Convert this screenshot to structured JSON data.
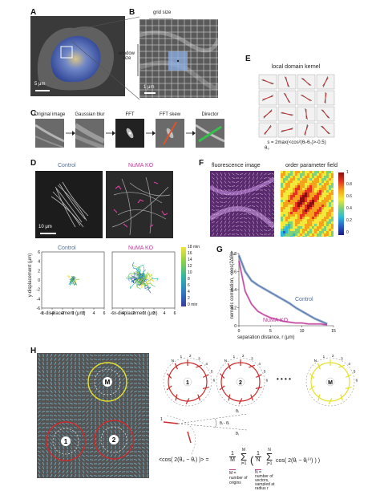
{
  "panels": {
    "A": {
      "label": "A",
      "scale": "5 μm"
    },
    "B": {
      "label": "B",
      "scale": "1 μm",
      "grid_size": "grid size",
      "window_size_line1": "window",
      "window_size_line2": "size"
    },
    "C": {
      "label": "C",
      "steps": [
        "Original image",
        "Gaussian blur",
        "FFT",
        "FFT skew",
        "Director"
      ],
      "theta": "θ"
    },
    "D": {
      "label": "D",
      "control": "Control",
      "numa": "NuMA KO",
      "scale": "10 μm",
      "xlabel": "x-displacement (μm)",
      "ylabel": "y-displacement (μm)",
      "xticks": [
        "-6",
        "-4",
        "-2",
        "0",
        "2",
        "4",
        "6"
      ],
      "yticks": [
        "6",
        "4",
        "2",
        "0",
        "-2",
        "-4",
        "-6"
      ],
      "colorbar_ticks": [
        "18 min",
        "16",
        "14",
        "12",
        "10",
        "8",
        "6",
        "4",
        "2",
        "0 min"
      ]
    },
    "E": {
      "label": "E",
      "title": "local domain kernel",
      "formula": "s = 2max(<cos²(θᵢ-θ₀)>-0.5)",
      "sub": "θ₀"
    },
    "F": {
      "label": "F",
      "left_title": "fluorescence image",
      "right_title": "order parameter field",
      "colorbar_ticks": [
        "1",
        "0.8",
        "0.6",
        "0.4",
        "0.2",
        "0"
      ]
    },
    "G": {
      "label": "G",
      "ylabel_line1": "nematic correlation, <cos(2Δθ)>",
      "xlabel": "separation distance, r (μm)",
      "control": "Control",
      "numa": "NuMA KO",
      "xticks": [
        "0",
        "5",
        "10",
        "15"
      ],
      "yticks": [
        "0.8",
        "0.6",
        "0.4",
        "0.2",
        "0"
      ]
    },
    "H": {
      "label": "H",
      "circle_labels": [
        "M",
        "1",
        "2"
      ],
      "dots": "• • • •",
      "ring_numbers": [
        "N",
        "1",
        "2",
        "3",
        "4",
        "5",
        "6"
      ],
      "angle_labels": [
        "θⱼ",
        "θᵢ",
        "θⱼ - θᵢ"
      ],
      "lhs": "<cos( 2(θ₀ − θᵣ) )> =",
      "frac1_num": "1",
      "frac1_den": "M",
      "frac2_num": "1",
      "frac2_den": "N",
      "sum1_top": "M",
      "sum1_bot": "i=1",
      "sum2_top": "N",
      "sum2_bot": "j=1",
      "inner": "cos( 2(θᵢ − θⱼ⁽ⁱ⁾) ) )",
      "note_m": "M =",
      "note_m2": "number of",
      "note_m3": "origins",
      "note_n": "N =",
      "note_n2": "number of",
      "note_n3": "vectors,",
      "note_n4": "sampled at",
      "note_n5": "radius r"
    }
  },
  "chart_data": [
    {
      "type": "line",
      "title": "",
      "xlabel": "separation distance, r (μm)",
      "ylabel": "nematic correlation, <cos(2Δθ)>",
      "xlim": [
        0,
        15
      ],
      "ylim": [
        0,
        0.8
      ],
      "series": [
        {
          "name": "Control",
          "x": [
            0,
            1,
            2,
            3,
            4,
            5,
            6,
            7,
            8,
            9,
            10,
            11,
            12,
            13,
            14
          ],
          "values": [
            0.78,
            0.6,
            0.5,
            0.45,
            0.41,
            0.37,
            0.33,
            0.29,
            0.25,
            0.2,
            0.16,
            0.12,
            0.08,
            0.05,
            0.02
          ]
        },
        {
          "name": "NuMA KO",
          "x": [
            0,
            1,
            2,
            3,
            4,
            5,
            6,
            7,
            8,
            9,
            10,
            11,
            12,
            13,
            14
          ],
          "values": [
            0.72,
            0.38,
            0.24,
            0.16,
            0.12,
            0.09,
            0.07,
            0.05,
            0.04,
            0.03,
            0.03,
            0.02,
            0.02,
            0.02,
            0.01
          ]
        }
      ]
    }
  ],
  "colors": {
    "control": "#4a6fa8",
    "numa": "#c0399b",
    "blue_overlay": "#3f5fb5",
    "red": "#cc2a2a",
    "yellow": "#e6e12b"
  }
}
